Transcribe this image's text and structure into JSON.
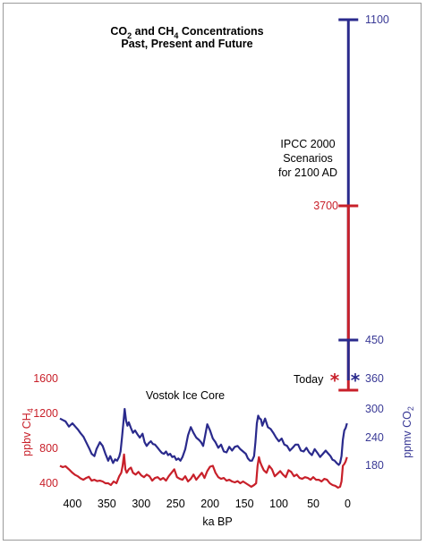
{
  "chart_data": {
    "type": "line",
    "title": {
      "line1_pre": "CO",
      "line1_sub1": "2",
      "line1_mid": " and CH",
      "line1_sub2": "4",
      "line1_post": " Concentrations",
      "line2": "Past, Present and Future"
    },
    "xlabel": "ka BP",
    "xlim": [
      420,
      -8
    ],
    "x_ticks": [
      "400",
      "350",
      "300",
      "250",
      "200",
      "150",
      "100",
      "50",
      "0"
    ],
    "y_left_label": {
      "pre": "ppbv CH",
      "sub": "4"
    },
    "y_right_label": {
      "pre": "ppmv CO",
      "sub": "2"
    },
    "ch4_ticks": [
      "1600",
      "1200",
      "800",
      "400"
    ],
    "co2_ticks": [
      "1100",
      "450",
      "360",
      "300",
      "240",
      "180"
    ],
    "annotations": {
      "vostok": "Vostok Ice Core",
      "today": "Today",
      "ipcc": [
        "IPCC 2000",
        "Scenarios",
        "for 2100 AD"
      ],
      "ch4_scenario_max": "3700"
    },
    "colors": {
      "co2": "#2a2a8c",
      "ch4": "#c8202a"
    },
    "series": [
      {
        "key": "co2",
        "x": [
          418,
          414,
          410,
          405,
          400,
          395,
          392,
          388,
          384,
          380,
          375,
          372,
          368,
          365,
          360,
          356,
          352,
          348,
          345,
          341,
          338,
          335,
          332,
          330,
          328,
          326,
          324,
          322,
          320,
          318,
          315,
          312,
          309,
          306,
          302,
          298,
          295,
          292,
          289,
          286,
          283,
          280,
          276,
          273,
          270,
          267,
          264,
          261,
          258,
          255,
          252,
          249,
          246,
          243,
          240,
          236,
          232,
          228,
          224,
          220,
          216,
          213,
          210,
          207,
          204,
          200,
          196,
          192,
          188,
          184,
          180,
          176,
          172,
          168,
          164,
          160,
          156,
          152,
          148,
          145,
          142,
          139,
          136,
          134,
          132,
          130,
          128,
          126,
          124,
          120,
          116,
          112,
          108,
          104,
          100,
          96,
          92,
          88,
          84,
          80,
          76,
          72,
          68,
          64,
          60,
          56,
          52,
          48,
          44,
          40,
          36,
          32,
          28,
          25,
          22,
          19,
          16,
          13,
          11,
          9,
          7,
          5,
          3,
          1
        ],
        "y": [
          280,
          277,
          274,
          263,
          270,
          262,
          257,
          249,
          242,
          230,
          215,
          205,
          200,
          215,
          230,
          222,
          205,
          190,
          200,
          185,
          193,
          190,
          199,
          210,
          240,
          270,
          300,
          275,
          265,
          272,
          260,
          250,
          255,
          248,
          240,
          248,
          230,
          222,
          228,
          232,
          226,
          225,
          218,
          212,
          207,
          205,
          210,
          202,
          205,
          198,
          200,
          192,
          195,
          190,
          198,
          215,
          245,
          262,
          250,
          240,
          235,
          230,
          222,
          245,
          268,
          255,
          238,
          230,
          218,
          225,
          210,
          208,
          220,
          212,
          220,
          222,
          215,
          210,
          205,
          195,
          190,
          190,
          200,
          230,
          270,
          286,
          280,
          278,
          265,
          280,
          262,
          258,
          250,
          240,
          232,
          238,
          225,
          222,
          212,
          218,
          225,
          225,
          212,
          210,
          218,
          208,
          202,
          215,
          207,
          198,
          205,
          212,
          205,
          200,
          192,
          190,
          185,
          181,
          185,
          200,
          235,
          255,
          260,
          270
        ]
      },
      {
        "key": "ch4",
        "x": [
          418,
          414,
          410,
          405,
          400,
          396,
          392,
          388,
          384,
          380,
          376,
          372,
          368,
          364,
          360,
          356,
          352,
          348,
          344,
          340,
          336,
          332,
          329,
          327,
          325,
          323,
          321,
          318,
          315,
          312,
          308,
          304,
          300,
          296,
          292,
          288,
          284,
          280,
          276,
          272,
          268,
          264,
          260,
          256,
          252,
          248,
          244,
          240,
          236,
          232,
          228,
          224,
          220,
          216,
          212,
          208,
          204,
          200,
          196,
          192,
          188,
          184,
          180,
          176,
          172,
          168,
          164,
          160,
          156,
          152,
          148,
          144,
          140,
          136,
          133,
          131,
          129,
          127,
          125,
          122,
          118,
          114,
          110,
          106,
          102,
          98,
          94,
          90,
          86,
          82,
          78,
          74,
          70,
          66,
          62,
          58,
          54,
          50,
          46,
          42,
          38,
          34,
          30,
          26,
          22,
          18,
          14,
          11,
          9,
          7,
          5,
          3,
          1
        ],
        "y": [
          600,
          585,
          595,
          560,
          520,
          495,
          480,
          455,
          440,
          460,
          475,
          430,
          440,
          425,
          430,
          420,
          400,
          400,
          380,
          420,
          400,
          480,
          520,
          600,
          730,
          560,
          520,
          560,
          580,
          520,
          500,
          530,
          490,
          470,
          500,
          480,
          430,
          460,
          470,
          440,
          460,
          430,
          480,
          520,
          560,
          470,
          450,
          440,
          480,
          420,
          450,
          500,
          440,
          480,
          520,
          460,
          540,
          590,
          600,
          520,
          470,
          450,
          460,
          430,
          440,
          420,
          410,
          425,
          400,
          420,
          400,
          380,
          360,
          380,
          400,
          600,
          700,
          640,
          600,
          550,
          520,
          600,
          560,
          480,
          510,
          540,
          500,
          470,
          550,
          530,
          480,
          500,
          460,
          450,
          470,
          460,
          440,
          470,
          440,
          440,
          420,
          450,
          440,
          400,
          380,
          370,
          350,
          360,
          420,
          600,
          620,
          650,
          700
        ]
      },
      {
        "key": "co2_projection",
        "x": [
          -1,
          -1
        ],
        "y": [
          180,
          1100
        ]
      },
      {
        "key": "ch4_projection",
        "x": [
          -1,
          -1
        ],
        "y": [
          320,
          3700
        ]
      }
    ],
    "grid": false,
    "legend": "none"
  }
}
